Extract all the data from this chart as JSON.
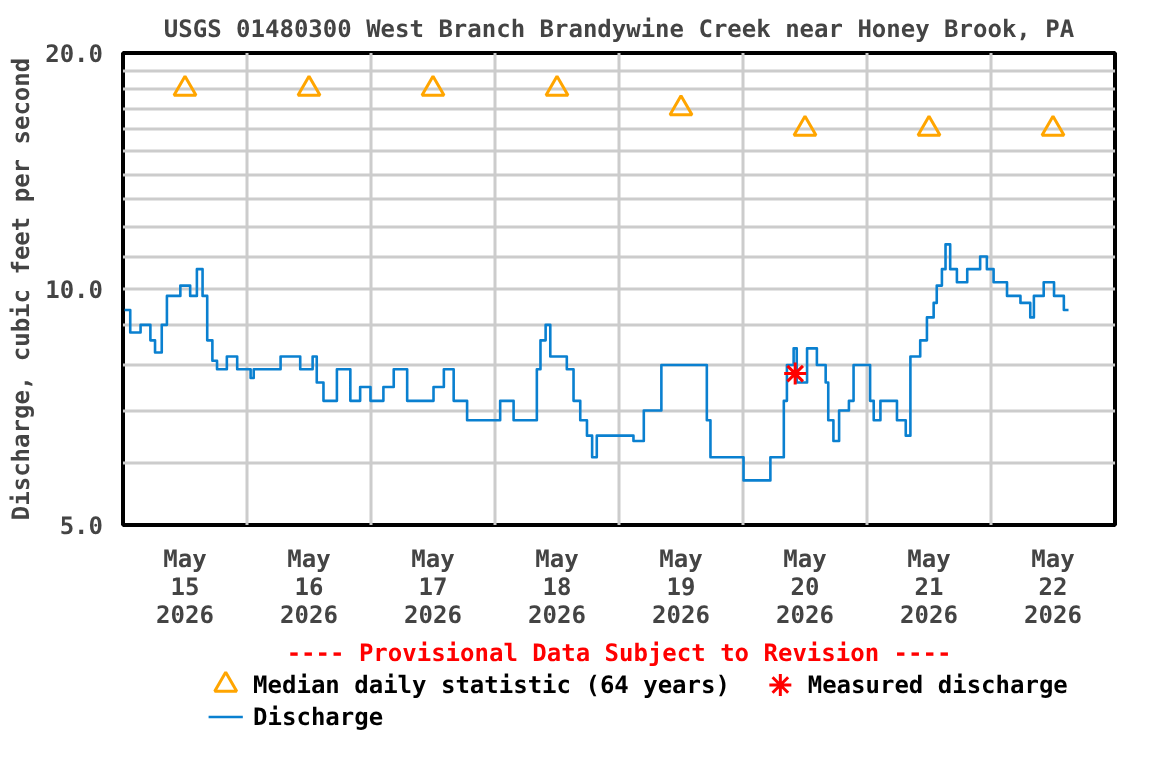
{
  "chart_data": {
    "type": "step",
    "title": "USGS 01480300 West Branch Brandywine Creek near Honey Brook, PA",
    "ylabel": "Discharge, cubic feet per second",
    "annotations": [
      "---- Provisional Data Subject to Revision ----"
    ],
    "log": "y",
    "grid": true,
    "legend": "bottom",
    "xlim": [
      "2026-05-15T00:00",
      "2026-05-23T00:00"
    ],
    "xticks": [
      {
        "value": "2026-05-15T00:00",
        "label": null
      },
      {
        "value": "2026-05-15T12:00",
        "label": "May\n15\n2026"
      },
      {
        "value": "2026-05-16T00:00",
        "label": null
      },
      {
        "value": "2026-05-16T12:00",
        "label": "May\n16\n2026"
      },
      {
        "value": "2026-05-17T00:00",
        "label": null
      },
      {
        "value": "2026-05-17T12:00",
        "label": "May\n17\n2026"
      },
      {
        "value": "2026-05-18T00:00",
        "label": null
      },
      {
        "value": "2026-05-18T12:00",
        "label": "May\n18\n2026"
      },
      {
        "value": "2026-05-19T00:00",
        "label": null
      },
      {
        "value": "2026-05-19T12:00",
        "label": "May\n19\n2026"
      },
      {
        "value": "2026-05-20T00:00",
        "label": null
      },
      {
        "value": "2026-05-20T12:00",
        "label": "May\n20\n2026"
      },
      {
        "value": "2026-05-21T00:00",
        "label": null
      },
      {
        "value": "2026-05-21T12:00",
        "label": "May\n21\n2026"
      },
      {
        "value": "2026-05-22T00:00",
        "label": null
      },
      {
        "value": "2026-05-22T12:00",
        "label": "May\n22\n2026"
      },
      {
        "value": "2026-05-23T00:00",
        "label": null
      }
    ],
    "ylim": [
      5,
      20
    ],
    "yticks": [
      {
        "value": 5,
        "label": "5.0"
      },
      {
        "value": 6,
        "label": null
      },
      {
        "value": 7,
        "label": null
      },
      {
        "value": 8,
        "label": null
      },
      {
        "value": 9,
        "label": null
      },
      {
        "value": 10,
        "label": "10.0"
      },
      {
        "value": 11,
        "label": null
      },
      {
        "value": 12,
        "label": null
      },
      {
        "value": 13,
        "label": null
      },
      {
        "value": 14,
        "label": null
      },
      {
        "value": 15,
        "label": null
      },
      {
        "value": 16,
        "label": null
      },
      {
        "value": 17,
        "label": null
      },
      {
        "value": 18,
        "label": null
      },
      {
        "value": 19,
        "label": null
      },
      {
        "value": 20,
        "label": "20.0"
      }
    ],
    "series": [
      {
        "name": "Median daily statistic (64 years)",
        "type": "scatter",
        "marker": "triangle",
        "color": "#ffa500",
        "x": [
          "2026-05-15T12:00",
          "2026-05-16T12:00",
          "2026-05-17T12:00",
          "2026-05-18T12:00",
          "2026-05-19T12:00",
          "2026-05-20T12:00",
          "2026-05-21T12:00",
          "2026-05-22T12:00"
        ],
        "values": [
          18,
          18,
          18,
          18,
          17,
          16,
          16,
          16
        ]
      },
      {
        "name": "Measured discharge",
        "type": "scatter",
        "marker": "cross",
        "color": "#ff0000",
        "x": [
          "2026-05-20T10:06"
        ],
        "values": [
          7.8
        ]
      },
      {
        "name": "Discharge",
        "color": "#0a80d0",
        "line_style": "solid",
        "marker": "none",
        "x": [
          "2026-05-15T00:18",
          "2026-05-15T01:24",
          "2026-05-15T03:24",
          "2026-05-15T05:18",
          "2026-05-15T06:12",
          "2026-05-15T07:30",
          "2026-05-15T08:30",
          "2026-05-15T11:06",
          "2026-05-15T13:00",
          "2026-05-15T14:18",
          "2026-05-15T15:24",
          "2026-05-15T16:18",
          "2026-05-15T17:18",
          "2026-05-15T18:12",
          "2026-05-15T20:06",
          "2026-05-15T22:06",
          "2026-05-16T00:42",
          "2026-05-16T01:18",
          "2026-05-16T06:30",
          "2026-05-16T10:18",
          "2026-05-16T12:42",
          "2026-05-16T13:30",
          "2026-05-16T14:48",
          "2026-05-16T16:48",
          "2026-05-16T17:24",
          "2026-05-16T20:00",
          "2026-05-16T21:54",
          "2026-05-16T23:54",
          "2026-05-17T02:24",
          "2026-05-17T04:24",
          "2026-05-17T05:42",
          "2026-05-17T07:00",
          "2026-05-17T10:48",
          "2026-05-17T12:06",
          "2026-05-17T14:06",
          "2026-05-17T16:00",
          "2026-05-17T18:36",
          "2026-05-17T22:30",
          "2026-05-18T01:00",
          "2026-05-18T03:36",
          "2026-05-18T07:30",
          "2026-05-18T08:06",
          "2026-05-18T08:48",
          "2026-05-18T09:48",
          "2026-05-18T10:42",
          "2026-05-18T12:00",
          "2026-05-18T13:54",
          "2026-05-18T15:12",
          "2026-05-18T16:30",
          "2026-05-18T17:48",
          "2026-05-18T18:48",
          "2026-05-18T19:42",
          "2026-05-18T21:42",
          "2026-05-19T02:48",
          "2026-05-19T04:48",
          "2026-05-19T06:42",
          "2026-05-19T08:12",
          "2026-05-19T12:30",
          "2026-05-19T16:06",
          "2026-05-19T17:00",
          "2026-05-19T17:42",
          "2026-05-19T23:30",
          "2026-05-20T00:06",
          "2026-05-20T04:00",
          "2026-05-20T05:18",
          "2026-05-20T07:54",
          "2026-05-20T08:30",
          "2026-05-20T09:48",
          "2026-05-20T10:24",
          "2026-05-20T12:24",
          "2026-05-20T14:18",
          "2026-05-20T16:00",
          "2026-05-20T16:30",
          "2026-05-20T17:30",
          "2026-05-20T18:36",
          "2026-05-20T20:06",
          "2026-05-20T20:30",
          "2026-05-20T21:24",
          "2026-05-21T00:36",
          "2026-05-21T01:18",
          "2026-05-21T02:36",
          "2026-05-21T04:54",
          "2026-05-21T05:48",
          "2026-05-21T07:30",
          "2026-05-21T08:24",
          "2026-05-21T10:18",
          "2026-05-21T11:36",
          "2026-05-21T12:54",
          "2026-05-21T13:30",
          "2026-05-21T14:30",
          "2026-05-21T15:12",
          "2026-05-21T16:06",
          "2026-05-21T17:24",
          "2026-05-21T19:24",
          "2026-05-21T21:54",
          "2026-05-21T23:12",
          "2026-05-22T00:30",
          "2026-05-22T03:06",
          "2026-05-22T05:42",
          "2026-05-22T07:36",
          "2026-05-22T08:18",
          "2026-05-22T10:12",
          "2026-05-22T12:12",
          "2026-05-22T14:06",
          "2026-05-22T15:00"
        ],
        "values": [
          9.4,
          8.8,
          9.0,
          8.6,
          8.3,
          9.0,
          9.8,
          10.1,
          9.8,
          10.6,
          9.8,
          8.6,
          8.1,
          7.9,
          8.2,
          7.9,
          7.7,
          7.9,
          8.2,
          7.9,
          8.2,
          7.6,
          7.2,
          7.2,
          7.9,
          7.2,
          7.5,
          7.2,
          7.5,
          7.9,
          7.9,
          7.2,
          7.2,
          7.5,
          7.9,
          7.2,
          6.8,
          6.8,
          7.2,
          6.8,
          6.8,
          7.9,
          8.6,
          9.0,
          8.2,
          8.2,
          7.9,
          7.2,
          6.8,
          6.5,
          6.1,
          6.5,
          6.5,
          6.4,
          7.0,
          7.0,
          8.0,
          8.0,
          8.0,
          6.8,
          6.1,
          6.1,
          5.7,
          5.7,
          6.1,
          7.2,
          8.0,
          8.4,
          7.6,
          8.4,
          8.0,
          7.6,
          6.8,
          6.4,
          7.0,
          7.0,
          7.2,
          8.0,
          7.2,
          6.8,
          7.2,
          7.2,
          6.8,
          6.5,
          8.2,
          8.6,
          9.2,
          9.6,
          10.1,
          10.6,
          11.4,
          10.6,
          10.2,
          10.6,
          11.0,
          10.6,
          10.2,
          9.8,
          9.6,
          9.2,
          9.8,
          10.2,
          9.8,
          9.4,
          9.4
        ]
      }
    ]
  }
}
